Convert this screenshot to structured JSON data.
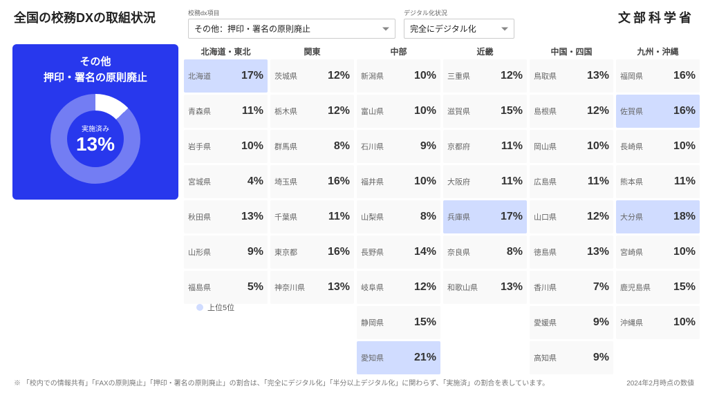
{
  "title": "全国の校務DXの取組状況",
  "selects": {
    "label1": "校務dx項目",
    "value1": "その他：押印・署名の原則廃止",
    "label2": "デジタル化状況",
    "value2": "完全にデジタル化"
  },
  "logo": "文部科学省",
  "card": {
    "line1": "その他",
    "line2": "押印・署名の原則廃止",
    "status_label": "実施済み",
    "percent": "13%",
    "donut_percent": 13,
    "bg_color": "#2838ed",
    "fg_color": "#ffffff",
    "track_color": "rgba(255,255,255,0.35)"
  },
  "legend": {
    "dot_color": "#d0dcff",
    "text": "上位5位"
  },
  "top5_color": "#d0dcff",
  "cell_color": "#f9f9f9",
  "regions": [
    {
      "name": "北海道・東北",
      "prefs": [
        {
          "pref": "北海道",
          "val": "17%",
          "top5": true
        },
        {
          "pref": "青森県",
          "val": "11%"
        },
        {
          "pref": "岩手県",
          "val": "10%"
        },
        {
          "pref": "宮城県",
          "val": "4%"
        },
        {
          "pref": "秋田県",
          "val": "13%"
        },
        {
          "pref": "山形県",
          "val": "9%"
        },
        {
          "pref": "福島県",
          "val": "5%"
        }
      ]
    },
    {
      "name": "関東",
      "prefs": [
        {
          "pref": "茨城県",
          "val": "12%"
        },
        {
          "pref": "栃木県",
          "val": "12%"
        },
        {
          "pref": "群馬県",
          "val": "8%"
        },
        {
          "pref": "埼玉県",
          "val": "16%"
        },
        {
          "pref": "千葉県",
          "val": "11%"
        },
        {
          "pref": "東京都",
          "val": "16%"
        },
        {
          "pref": "神奈川県",
          "val": "13%"
        }
      ]
    },
    {
      "name": "中部",
      "prefs": [
        {
          "pref": "新潟県",
          "val": "10%"
        },
        {
          "pref": "富山県",
          "val": "10%"
        },
        {
          "pref": "石川県",
          "val": "9%"
        },
        {
          "pref": "福井県",
          "val": "10%"
        },
        {
          "pref": "山梨県",
          "val": "8%"
        },
        {
          "pref": "長野県",
          "val": "14%"
        },
        {
          "pref": "岐阜県",
          "val": "12%"
        },
        {
          "pref": "静岡県",
          "val": "15%"
        },
        {
          "pref": "愛知県",
          "val": "21%",
          "top5": true
        }
      ]
    },
    {
      "name": "近畿",
      "prefs": [
        {
          "pref": "三重県",
          "val": "12%"
        },
        {
          "pref": "滋賀県",
          "val": "15%"
        },
        {
          "pref": "京都府",
          "val": "11%"
        },
        {
          "pref": "大阪府",
          "val": "11%"
        },
        {
          "pref": "兵庫県",
          "val": "17%",
          "top5": true
        },
        {
          "pref": "奈良県",
          "val": "8%"
        },
        {
          "pref": "和歌山県",
          "val": "13%"
        }
      ]
    },
    {
      "name": "中国・四国",
      "prefs": [
        {
          "pref": "鳥取県",
          "val": "13%"
        },
        {
          "pref": "島根県",
          "val": "12%"
        },
        {
          "pref": "岡山県",
          "val": "10%"
        },
        {
          "pref": "広島県",
          "val": "11%"
        },
        {
          "pref": "山口県",
          "val": "12%"
        },
        {
          "pref": "徳島県",
          "val": "13%"
        },
        {
          "pref": "香川県",
          "val": "7%"
        },
        {
          "pref": "愛媛県",
          "val": "9%"
        },
        {
          "pref": "高知県",
          "val": "9%"
        }
      ]
    },
    {
      "name": "九州・沖縄",
      "prefs": [
        {
          "pref": "福岡県",
          "val": "16%"
        },
        {
          "pref": "佐賀県",
          "val": "16%",
          "top5": true
        },
        {
          "pref": "長崎県",
          "val": "10%"
        },
        {
          "pref": "熊本県",
          "val": "11%"
        },
        {
          "pref": "大分県",
          "val": "18%",
          "top5": true
        },
        {
          "pref": "宮崎県",
          "val": "10%"
        },
        {
          "pref": "鹿児島県",
          "val": "15%"
        },
        {
          "pref": "沖縄県",
          "val": "10%"
        }
      ]
    }
  ],
  "footer": {
    "note": "「校内での情報共有」「FAXの原則廃止」「押印・署名の原則廃止」の割合は、「完全にデジタル化」「半分以上デジタル化」に関わらず、「実施済」の割合を表しています。",
    "date": "2024年2月時点の数値"
  }
}
